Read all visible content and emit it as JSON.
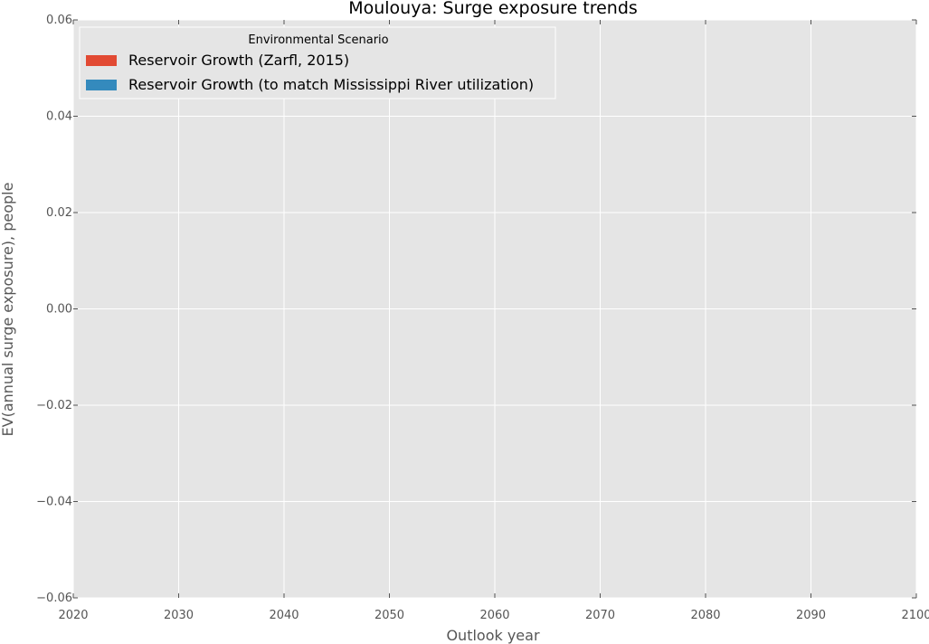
{
  "chart_data": {
    "type": "area",
    "title": "Moulouya: Surge exposure trends",
    "xlabel": "Outlook year",
    "ylabel": "EV(annual surge exposure), people",
    "xlim": [
      2020,
      2100
    ],
    "ylim": [
      -0.06,
      0.06
    ],
    "x_ticks": [
      2020,
      2030,
      2040,
      2050,
      2060,
      2070,
      2080,
      2090,
      2100
    ],
    "y_ticks": [
      -0.06,
      -0.04,
      -0.02,
      0.0,
      0.02,
      0.04,
      0.06
    ],
    "x_tick_labels": [
      "2020",
      "2030",
      "2040",
      "2050",
      "2060",
      "2070",
      "2080",
      "2090",
      "2100"
    ],
    "y_tick_labels": [
      "−0.06",
      "−0.04",
      "−0.02",
      "0.00",
      "0.02",
      "0.04",
      "0.06"
    ],
    "grid": true,
    "legend": {
      "title": "Environmental Scenario",
      "placement": "top-left"
    },
    "series": [
      {
        "name": "Reservoir Growth (Zarfl, 2015)",
        "color": "#e24a33",
        "x": [],
        "y": []
      },
      {
        "name": "Reservoir Growth (to match Mississippi River utilization)",
        "color": "#348abd",
        "x": [],
        "y": []
      }
    ]
  }
}
